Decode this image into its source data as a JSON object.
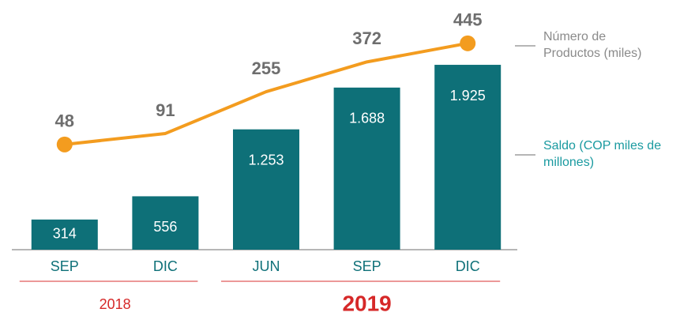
{
  "chart_data": {
    "type": "bar",
    "categories": [
      "SEP",
      "DIC",
      "JUN",
      "SEP",
      "DIC"
    ],
    "year_groups": [
      "2018",
      "2019"
    ],
    "series": [
      {
        "name": "Saldo (COP miles de millones)",
        "type": "bar",
        "color": "#0e7078",
        "values": [
          314,
          556,
          1253,
          1688,
          1925
        ],
        "value_labels": [
          "314",
          "556",
          "1.253",
          "1.688",
          "1.925"
        ]
      },
      {
        "name": "Número de Productos (miles)",
        "type": "line",
        "color": "#f39c1f",
        "axis": "y2",
        "values": [
          48,
          91,
          255,
          372,
          445
        ]
      }
    ],
    "ylim": [
      0,
      2600
    ],
    "y2lim": [
      -365,
      615
    ]
  }
}
